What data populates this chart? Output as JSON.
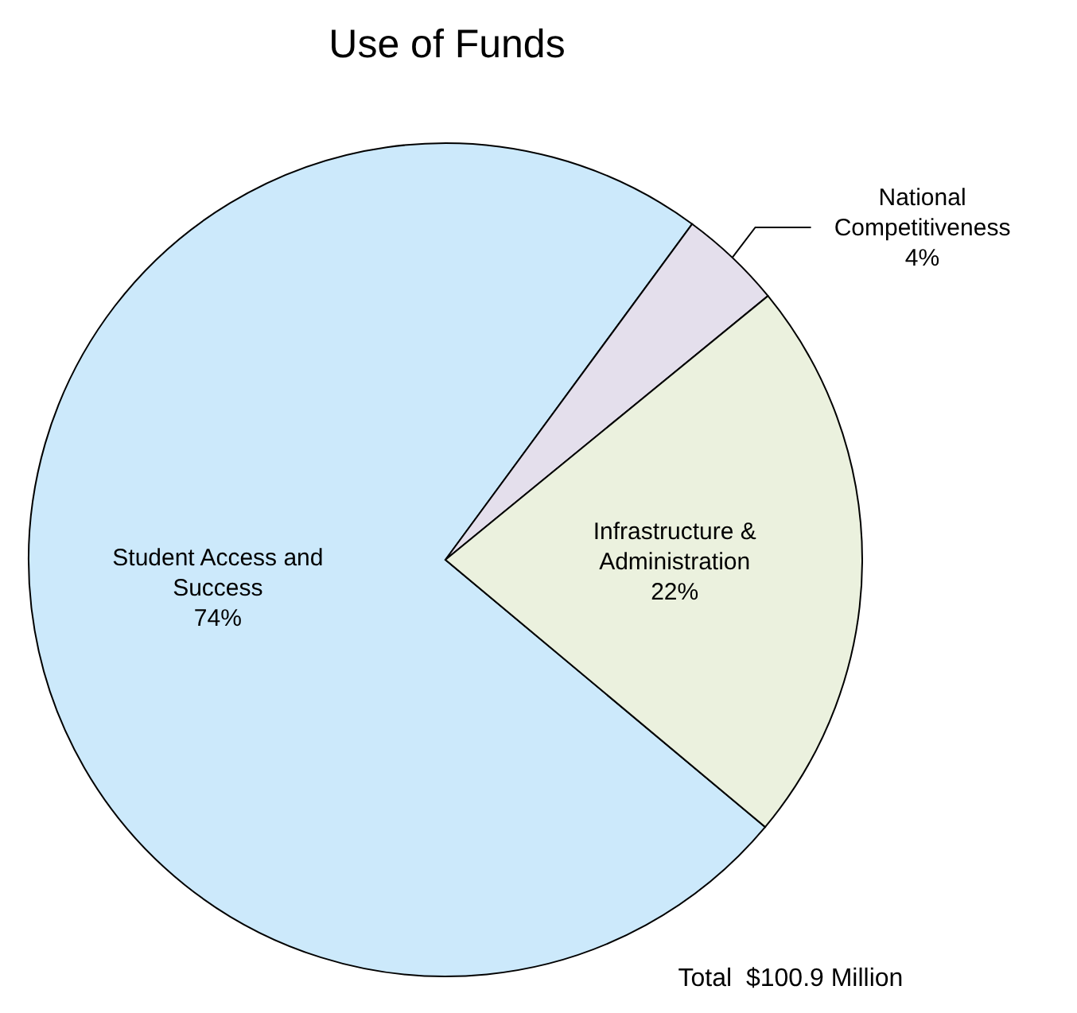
{
  "chart_data": {
    "type": "pie",
    "title": "Use of Funds",
    "categories": [
      "Student Access and Success",
      "National Competitiveness",
      "Infrastructure & Administration"
    ],
    "values": [
      74,
      4,
      22
    ],
    "value_labels": [
      "74%",
      "4%",
      "22%"
    ],
    "colors": [
      "#cce9fb",
      "#e4dfec",
      "#ebf1de"
    ],
    "annotations": [
      "Total  $100.9 Million"
    ]
  }
}
